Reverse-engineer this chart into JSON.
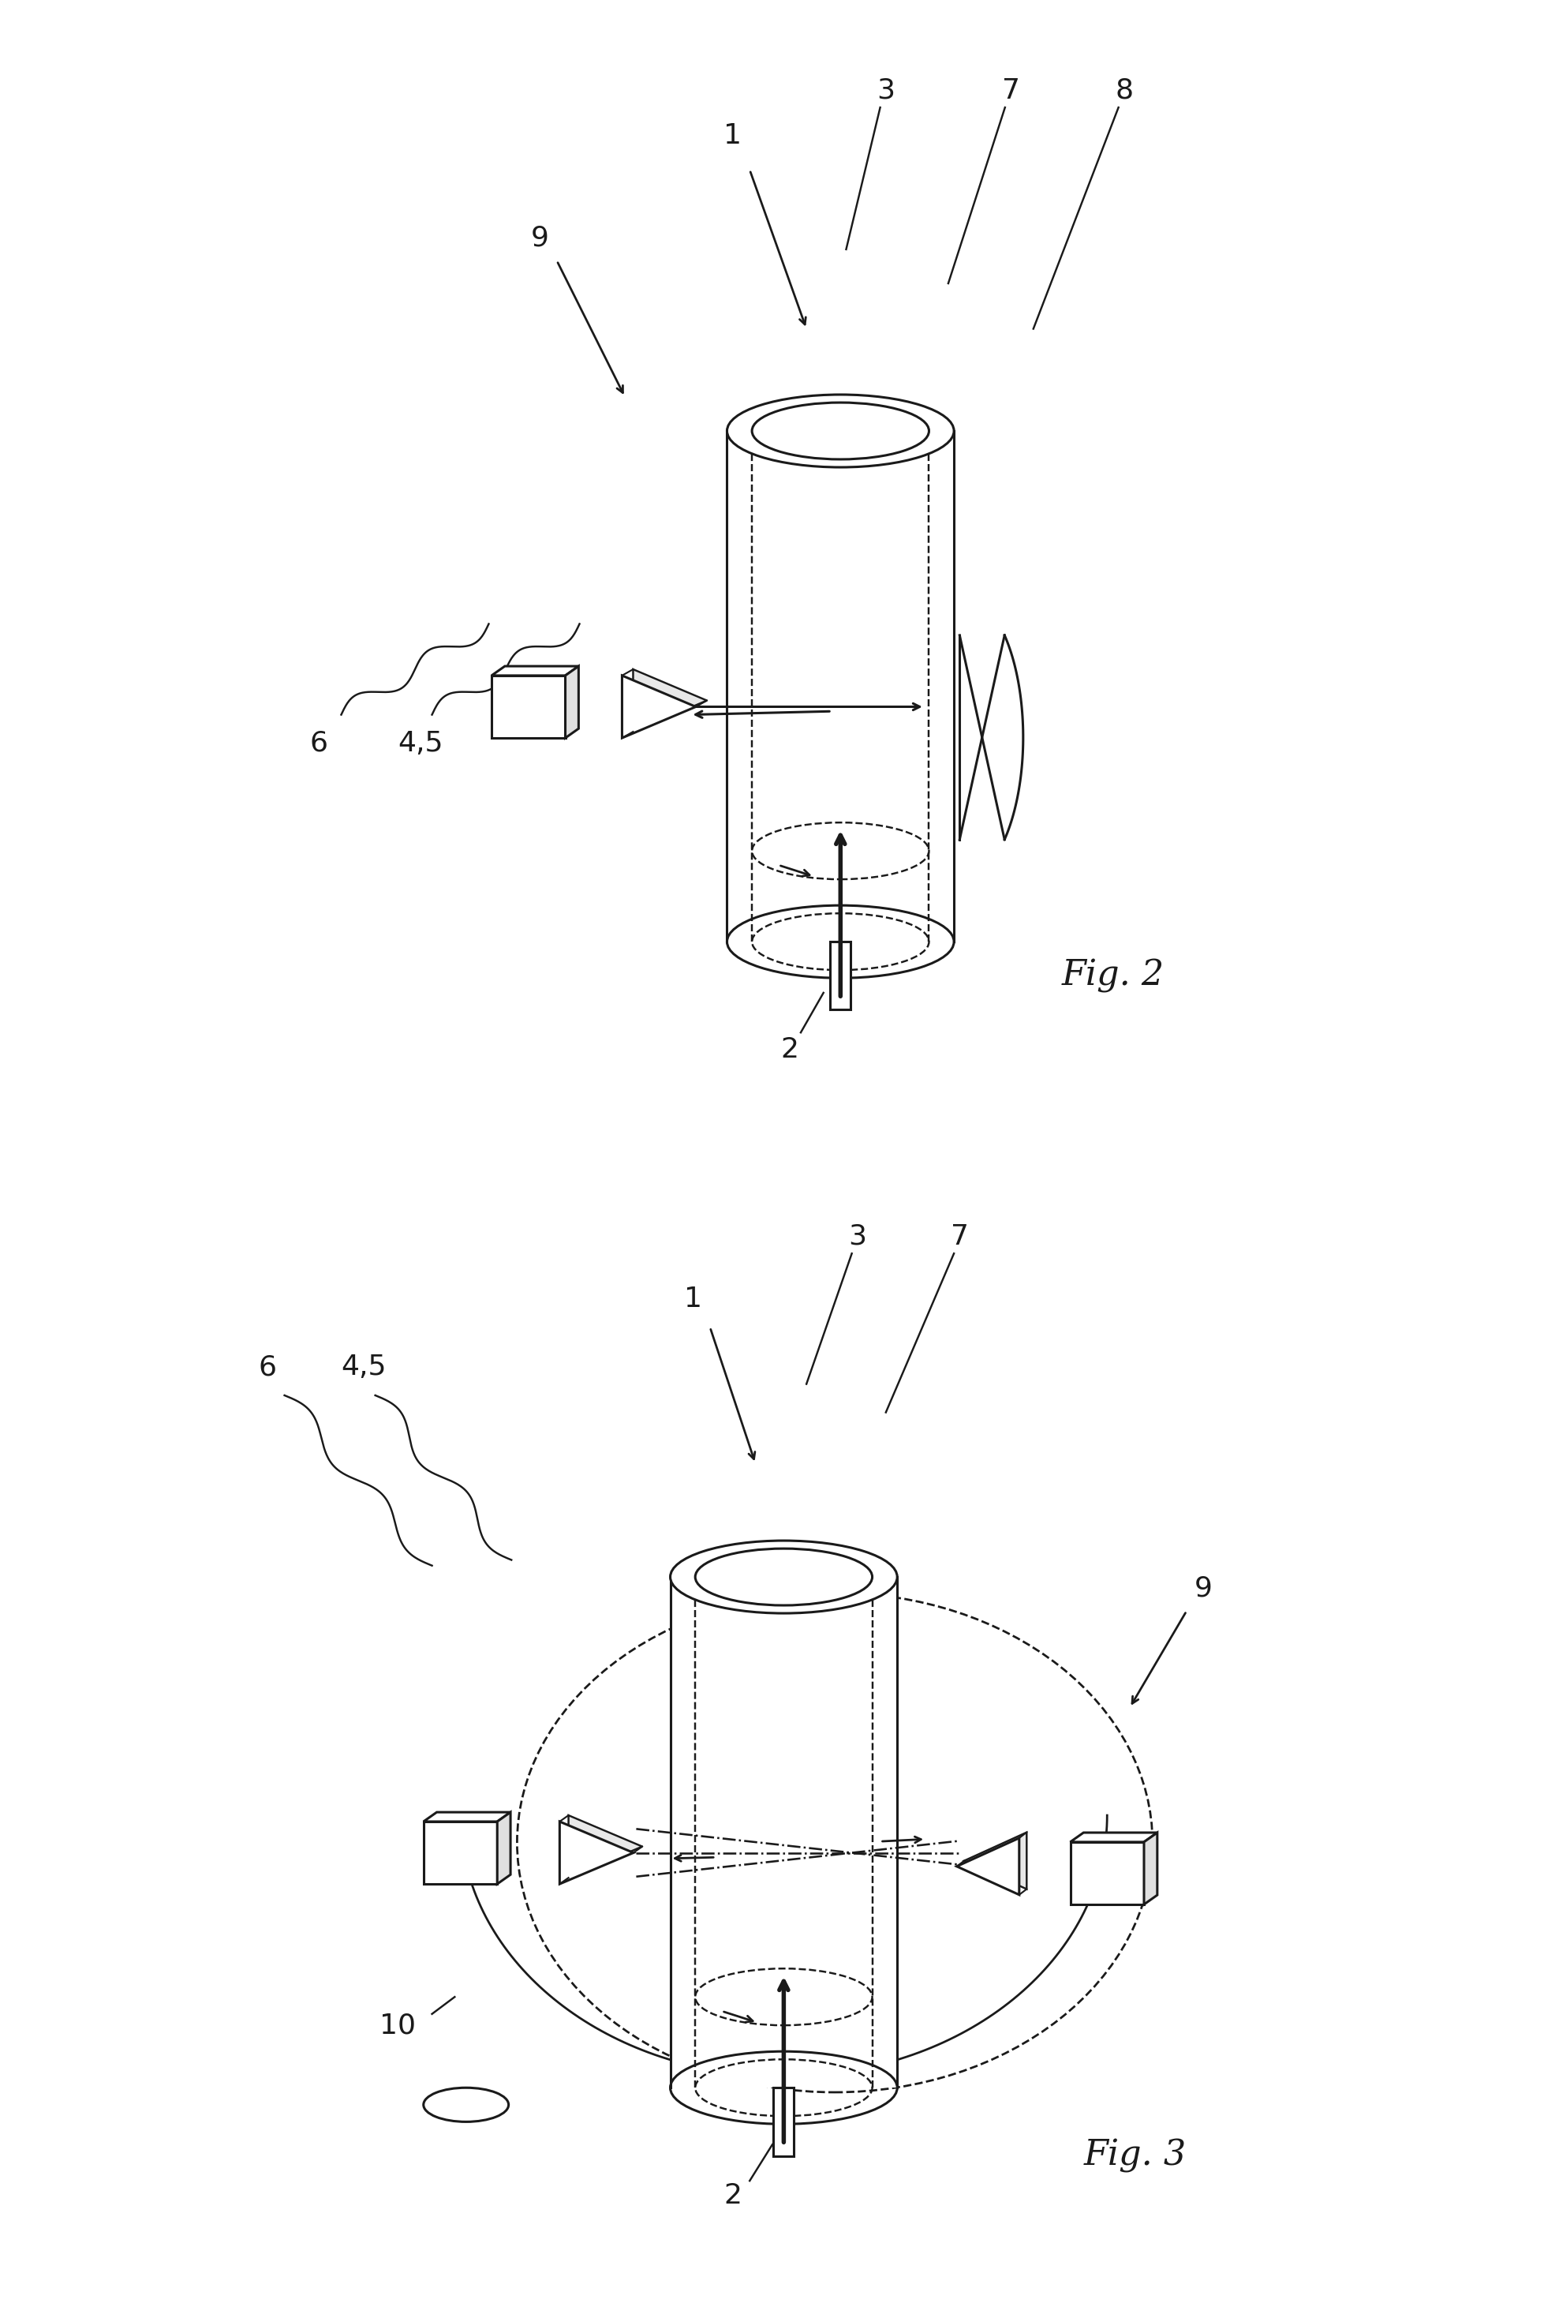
{
  "background_color": "#ffffff",
  "line_color": "#1a1a1a",
  "fig2_label": "Fig. 2",
  "fig3_label": "Fig. 3",
  "font_size_label": 32,
  "font_size_number": 26,
  "line_width": 2.2
}
